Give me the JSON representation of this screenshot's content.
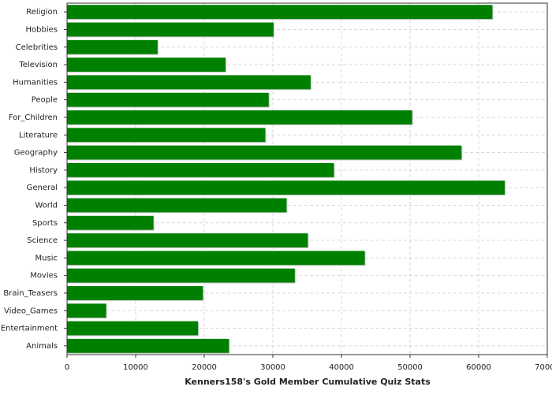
{
  "chart_data": {
    "type": "hbar",
    "xlabel": "Kenners158's Gold Member Cumulative Quiz Stats",
    "categories": [
      "Religion",
      "Hobbies",
      "Celebrities",
      "Television",
      "Humanities",
      "People",
      "For_Children",
      "Literature",
      "Geography",
      "History",
      "General",
      "World",
      "Sports",
      "Science",
      "Music",
      "Movies",
      "Brain_Teasers",
      "Video_Games",
      "Entertainment",
      "Animals"
    ],
    "values": [
      62000,
      30100,
      13200,
      23100,
      35500,
      29400,
      50300,
      28900,
      57500,
      38900,
      63800,
      32000,
      12600,
      35100,
      43400,
      33200,
      19800,
      5700,
      19100,
      23600
    ],
    "color": "#008000",
    "xlim": [
      0,
      70000
    ],
    "xticks": [
      0,
      10000,
      20000,
      30000,
      40000,
      50000,
      60000,
      70000
    ],
    "grid": true
  }
}
